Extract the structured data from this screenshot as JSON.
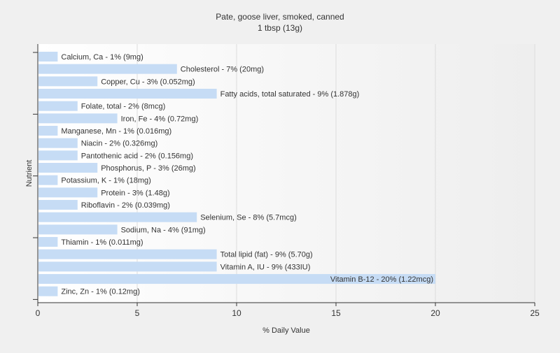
{
  "chart_data": {
    "type": "bar",
    "orientation": "horizontal",
    "title": "Pate, goose liver, smoked, canned",
    "subtitle": "1 tbsp (13g)",
    "xlabel": "% Daily Value",
    "ylabel": "Nutrient",
    "xlim": [
      0,
      25
    ],
    "xticks": [
      0,
      5,
      10,
      15,
      20,
      25
    ],
    "grid": true,
    "bar_color": "#c6dcf5",
    "categories": [
      "Calcium, Ca",
      "Cholesterol",
      "Copper, Cu",
      "Fatty acids, total saturated",
      "Folate, total",
      "Iron, Fe",
      "Manganese, Mn",
      "Niacin",
      "Pantothenic acid",
      "Phosphorus, P",
      "Potassium, K",
      "Protein",
      "Riboflavin",
      "Selenium, Se",
      "Sodium, Na",
      "Thiamin",
      "Total lipid (fat)",
      "Vitamin A, IU",
      "Vitamin B-12",
      "Zinc, Zn"
    ],
    "values": [
      1,
      7,
      3,
      9,
      2,
      4,
      1,
      2,
      2,
      3,
      1,
      3,
      2,
      8,
      4,
      1,
      9,
      9,
      20,
      1
    ],
    "labels": [
      "Calcium, Ca - 1% (9mg)",
      "Cholesterol - 7% (20mg)",
      "Copper, Cu - 3% (0.052mg)",
      "Fatty acids, total saturated - 9% (1.878g)",
      "Folate, total - 2% (8mcg)",
      "Iron, Fe - 4% (0.72mg)",
      "Manganese, Mn - 1% (0.016mg)",
      "Niacin - 2% (0.326mg)",
      "Pantothenic acid - 2% (0.156mg)",
      "Phosphorus, P - 3% (26mg)",
      "Potassium, K - 1% (18mg)",
      "Protein - 3% (1.48g)",
      "Riboflavin - 2% (0.039mg)",
      "Selenium, Se - 8% (5.7mcg)",
      "Sodium, Na - 4% (91mg)",
      "Thiamin - 1% (0.011mg)",
      "Total lipid (fat) - 9% (5.70g)",
      "Vitamin A, IU - 9% (433IU)",
      "Vitamin B-12 - 20% (1.22mcg)",
      "Zinc, Zn - 1% (0.12mg)"
    ]
  }
}
